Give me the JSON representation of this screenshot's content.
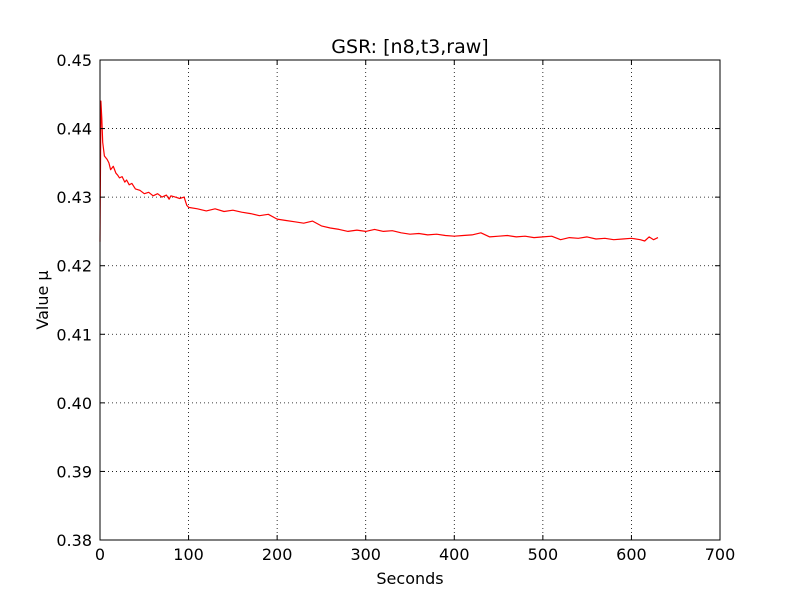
{
  "chart_data": {
    "type": "line",
    "title": "GSR: [n8,t3,raw]",
    "xlabel": "Seconds",
    "ylabel": "Value µ",
    "xlim": [
      0,
      700
    ],
    "ylim": [
      0.38,
      0.45
    ],
    "x_ticks": [
      0,
      100,
      200,
      300,
      400,
      500,
      600,
      700
    ],
    "x_tick_labels": [
      "0",
      "100",
      "200",
      "300",
      "400",
      "500",
      "600",
      "700"
    ],
    "y_ticks": [
      0.38,
      0.39,
      0.4,
      0.41,
      0.42,
      0.43,
      0.44,
      0.45
    ],
    "y_tick_labels": [
      "0.38",
      "0.39",
      "0.40",
      "0.41",
      "0.42",
      "0.43",
      "0.44",
      "0.45"
    ],
    "grid": true,
    "series": [
      {
        "color": "#ff0000",
        "x": [
          0,
          1,
          2,
          3,
          5,
          8,
          10,
          12,
          15,
          18,
          20,
          22,
          25,
          28,
          30,
          33,
          36,
          40,
          45,
          50,
          55,
          60,
          65,
          70,
          75,
          78,
          80,
          85,
          90,
          95,
          98,
          100,
          110,
          120,
          130,
          140,
          150,
          160,
          170,
          180,
          190,
          200,
          210,
          220,
          230,
          240,
          250,
          260,
          270,
          280,
          290,
          300,
          310,
          320,
          330,
          340,
          350,
          360,
          370,
          380,
          390,
          400,
          410,
          420,
          430,
          440,
          450,
          460,
          470,
          480,
          490,
          500,
          510,
          520,
          530,
          540,
          550,
          560,
          570,
          580,
          590,
          600,
          610,
          615,
          620,
          625,
          630
        ],
        "y": [
          0.4235,
          0.444,
          0.4415,
          0.438,
          0.436,
          0.4355,
          0.435,
          0.434,
          0.4345,
          0.4335,
          0.4332,
          0.4328,
          0.433,
          0.4322,
          0.4325,
          0.4318,
          0.432,
          0.4312,
          0.431,
          0.4305,
          0.4307,
          0.4302,
          0.4305,
          0.43,
          0.4303,
          0.4297,
          0.4302,
          0.43,
          0.4298,
          0.43,
          0.4288,
          0.4285,
          0.4283,
          0.428,
          0.4283,
          0.4279,
          0.4281,
          0.4278,
          0.4276,
          0.4273,
          0.4275,
          0.4268,
          0.4266,
          0.4264,
          0.4262,
          0.4265,
          0.4258,
          0.4255,
          0.4253,
          0.425,
          0.4252,
          0.425,
          0.4253,
          0.425,
          0.4251,
          0.4248,
          0.4246,
          0.4247,
          0.4245,
          0.4246,
          0.4244,
          0.4243,
          0.4244,
          0.4245,
          0.4248,
          0.4242,
          0.4243,
          0.4244,
          0.4242,
          0.4243,
          0.4241,
          0.4242,
          0.4243,
          0.4238,
          0.4241,
          0.424,
          0.4242,
          0.4239,
          0.424,
          0.4238,
          0.4239,
          0.424,
          0.4238,
          0.4236,
          0.4242,
          0.4238,
          0.4241
        ]
      }
    ]
  }
}
